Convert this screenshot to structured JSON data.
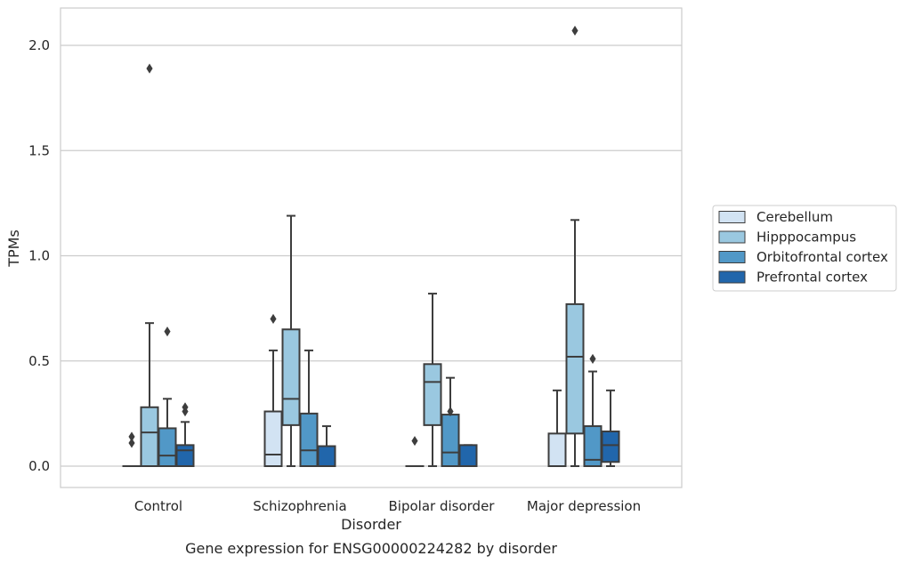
{
  "chart_data": {
    "type": "box",
    "caption": "Gene expression for ENSG00000224282 by disorder",
    "xlabel": "Disorder",
    "ylabel": "TPMs",
    "ylim": [
      -0.1,
      2.18
    ],
    "yticks": [
      0.0,
      0.5,
      1.0,
      1.5,
      2.0
    ],
    "ytick_labels": [
      "0.0",
      "0.5",
      "1.0",
      "1.5",
      "2.0"
    ],
    "grid": "horizontal",
    "legend_position": "right",
    "categories": [
      "Control",
      "Schizophrenia",
      "Bipolar disorder",
      "Major depression"
    ],
    "series": [
      {
        "name": "Cerebellum",
        "color": "#d2e3f3",
        "boxes": [
          {
            "min": 0.0,
            "q1": 0.0,
            "median": 0.0,
            "q3": 0.0,
            "max": 0.0,
            "outliers": [
              0.11,
              0.14
            ]
          },
          {
            "min": 0.0,
            "q1": 0.0,
            "median": 0.055,
            "q3": 0.26,
            "max": 0.55,
            "outliers": [
              0.7
            ]
          },
          {
            "min": 0.0,
            "q1": 0.0,
            "median": 0.0,
            "q3": 0.0,
            "max": 0.0,
            "outliers": [
              0.12
            ]
          },
          {
            "min": 0.0,
            "q1": 0.0,
            "median": 0.0,
            "q3": 0.155,
            "max": 0.36,
            "outliers": []
          }
        ]
      },
      {
        "name": "Hipppocampus",
        "color": "#9ac8e0",
        "boxes": [
          {
            "min": 0.0,
            "q1": 0.0,
            "median": 0.16,
            "q3": 0.28,
            "max": 0.68,
            "outliers": [
              1.89
            ]
          },
          {
            "min": 0.0,
            "q1": 0.195,
            "median": 0.32,
            "q3": 0.65,
            "max": 1.19,
            "outliers": []
          },
          {
            "min": 0.0,
            "q1": 0.195,
            "median": 0.4,
            "q3": 0.485,
            "max": 0.82,
            "outliers": []
          },
          {
            "min": 0.0,
            "q1": 0.155,
            "median": 0.52,
            "q3": 0.77,
            "max": 1.17,
            "outliers": [
              2.07
            ]
          }
        ]
      },
      {
        "name": "Orbitofrontal cortex",
        "color": "#5198c7",
        "boxes": [
          {
            "min": 0.0,
            "q1": 0.0,
            "median": 0.05,
            "q3": 0.18,
            "max": 0.32,
            "outliers": [
              0.64
            ]
          },
          {
            "min": 0.0,
            "q1": 0.0,
            "median": 0.075,
            "q3": 0.25,
            "max": 0.55,
            "outliers": []
          },
          {
            "min": 0.0,
            "q1": 0.0,
            "median": 0.065,
            "q3": 0.245,
            "max": 0.42,
            "outliers": [
              0.26
            ]
          },
          {
            "min": 0.0,
            "q1": 0.0,
            "median": 0.03,
            "q3": 0.19,
            "max": 0.45,
            "outliers": [
              0.51
            ]
          }
        ]
      },
      {
        "name": "Prefrontal cortex",
        "color": "#2166ab",
        "boxes": [
          {
            "min": 0.0,
            "q1": 0.0,
            "median": 0.075,
            "q3": 0.1,
            "max": 0.21,
            "outliers": [
              0.26,
              0.28
            ]
          },
          {
            "min": 0.0,
            "q1": 0.0,
            "median": 0.0,
            "q3": 0.095,
            "max": 0.19,
            "outliers": []
          },
          {
            "min": 0.0,
            "q1": 0.0,
            "median": 0.0,
            "q3": 0.1,
            "max": 0.1,
            "outliers": []
          },
          {
            "min": 0.0,
            "q1": 0.02,
            "median": 0.1,
            "q3": 0.165,
            "max": 0.36,
            "outliers": []
          }
        ]
      }
    ]
  },
  "colors": {
    "box_edge": "#3d3d3d",
    "grid": "#cccccc",
    "frame": "#cccccc",
    "text": "#262626"
  }
}
